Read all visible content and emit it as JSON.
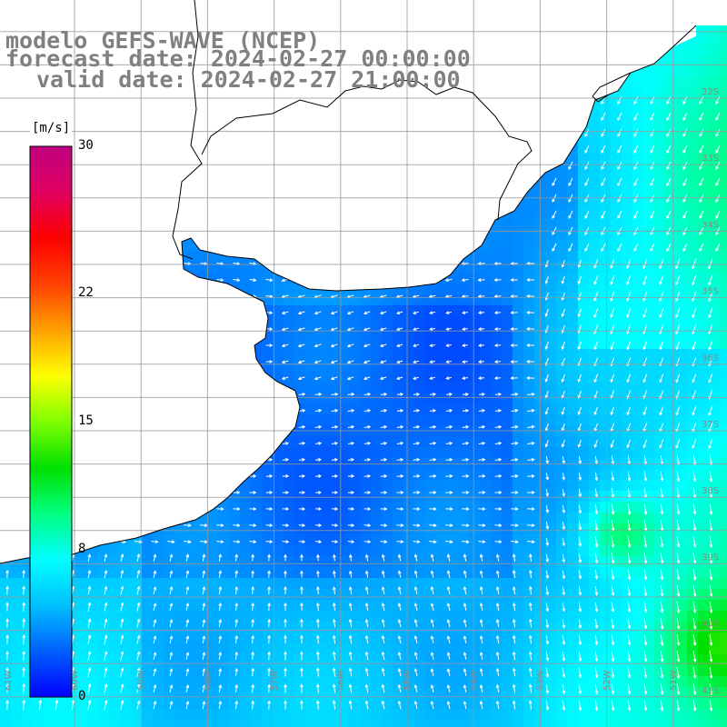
{
  "title": {
    "line1": "modelo GEFS-WAVE (NCEP)",
    "line2": "forecast date: 2024-02-27 00:00:00",
    "line3": "valid date: 2024-02-27 21:00:00"
  },
  "colorbar": {
    "unit": "[m/s]",
    "ticks": [
      {
        "value": 30,
        "label": "30"
      },
      {
        "value": 22,
        "label": "22"
      },
      {
        "value": 15,
        "label": "15"
      },
      {
        "value": 8,
        "label": "8"
      },
      {
        "value": 0,
        "label": "0"
      }
    ],
    "range": [
      0,
      30
    ],
    "colors": [
      "#0000ff",
      "#0060ff",
      "#00c0ff",
      "#00ffff",
      "#00ff80",
      "#00e000",
      "#80ff00",
      "#ffff00",
      "#ffa000",
      "#ff4000",
      "#ff0000",
      "#e00060",
      "#c00080"
    ]
  },
  "map": {
    "lat_labels": [
      "32S",
      "33S",
      "34S",
      "35S",
      "36S",
      "37S",
      "38S",
      "39S",
      "40S",
      "41S"
    ],
    "lon_labels": [
      "61W",
      "60W",
      "59W",
      "58W",
      "57W",
      "56W",
      "55W",
      "54W",
      "53W",
      "52W",
      "51W"
    ],
    "water_color": "#1a7cf0",
    "land_color": "#ffffff",
    "grid_color": "#999999",
    "arrow_color": "#ffffff"
  }
}
